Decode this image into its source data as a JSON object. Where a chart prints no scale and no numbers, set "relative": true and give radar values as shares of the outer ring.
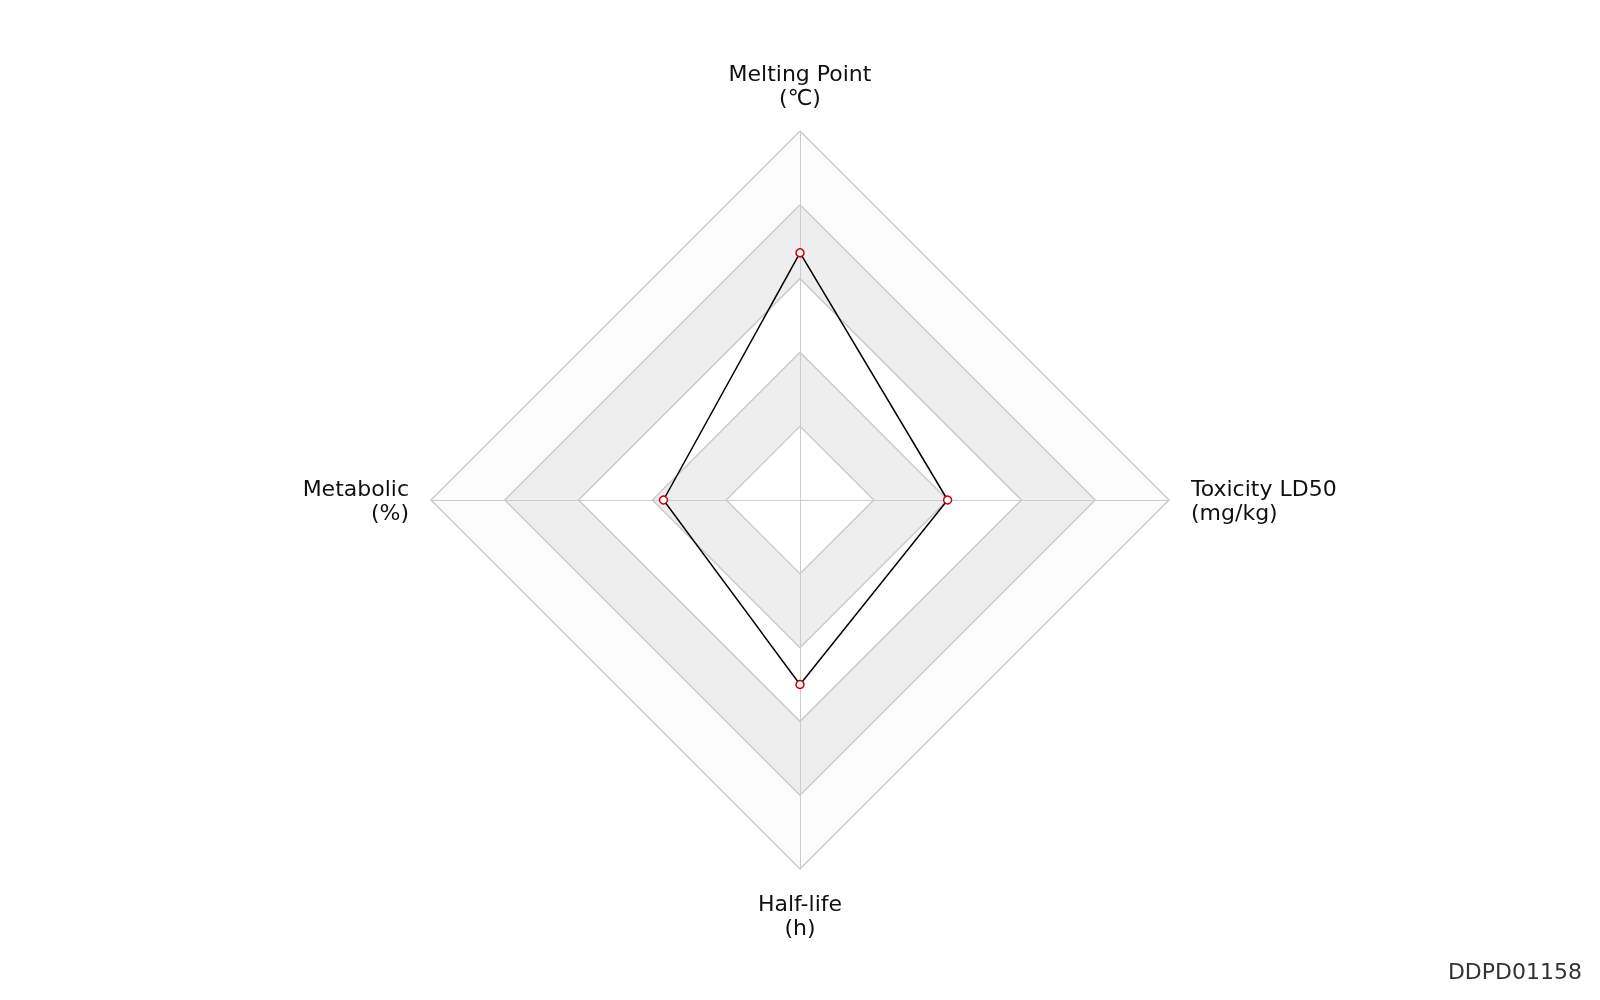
{
  "chart_data": {
    "type": "radar",
    "relative": true,
    "marker": "circle",
    "categories": [
      "Melting Point\n(℃)",
      "Toxicity LD50\n(mg/kg)",
      "Half-life\n(h)",
      "Metabolic\n(%)"
    ],
    "series": [
      {
        "color": "#000000",
        "values": [
          0.67,
          0.4,
          0.5,
          0.37
        ]
      }
    ],
    "annotations": [
      "DDPD01158"
    ]
  }
}
